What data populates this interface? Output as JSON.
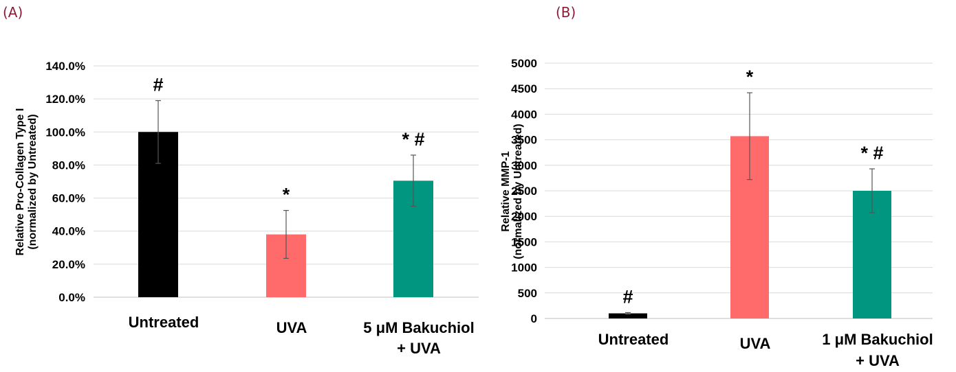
{
  "panels": {
    "a_label": "(A)",
    "b_label": "(B)"
  },
  "colors": {
    "untreated": "#000000",
    "uva": "#ff6b6b",
    "bakuchiol": "#009680",
    "grid": "#d9d9d9",
    "error": "#555555"
  },
  "chart_data": [
    {
      "type": "bar",
      "ylabel_line1": "Relative Pro-Collagen Type I",
      "ylabel_line2": "(normalized by Untreated)",
      "ylim": [
        0,
        140
      ],
      "yticks": [
        "0.0%",
        "20.0%",
        "40.0%",
        "60.0%",
        "80.0%",
        "100.0%",
        "120.0%",
        "140.0%"
      ],
      "grid": true,
      "categories": [
        {
          "line1": "Untreated",
          "line2": ""
        },
        {
          "line1": "UVA",
          "line2": ""
        },
        {
          "line1": "5 μM Bakuchiol",
          "line2": "+ UVA"
        }
      ],
      "values": [
        100,
        38,
        70.5
      ],
      "errors": [
        19,
        14.5,
        15.5
      ],
      "significance": [
        "#",
        "*",
        "* #"
      ]
    },
    {
      "type": "bar",
      "ylabel_line1": "Relative MMP-1",
      "ylabel_line2": "(normalized by Untreated)",
      "ylim": [
        0,
        5000
      ],
      "yticks": [
        "0",
        "500",
        "1000",
        "1500",
        "2000",
        "2500",
        "3000",
        "3500",
        "4000",
        "4500",
        "5000"
      ],
      "grid": true,
      "categories": [
        {
          "line1": "Untreated",
          "line2": ""
        },
        {
          "line1": "UVA",
          "line2": ""
        },
        {
          "line1": "1 μM Bakuchiol",
          "line2": "+ UVA"
        }
      ],
      "values": [
        100,
        3570,
        2500
      ],
      "errors": [
        15,
        850,
        430
      ],
      "significance": [
        "#",
        "*",
        "* #"
      ]
    }
  ]
}
